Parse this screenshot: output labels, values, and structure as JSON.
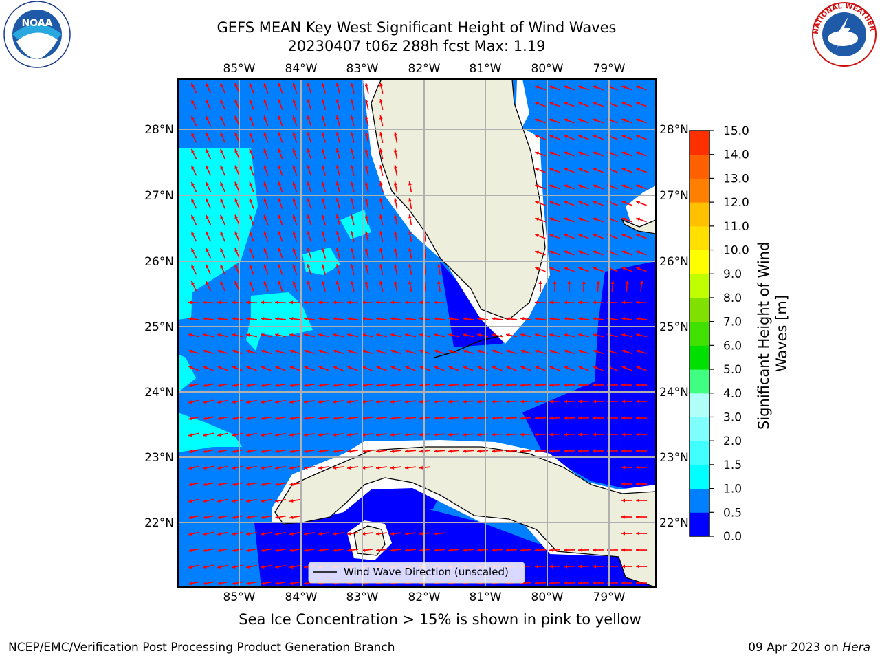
{
  "title": {
    "line1": "GEFS MEAN Key West Significant Height of Wind Waves",
    "line2": "20230407 t06z 288h fcst   Max: 1.19"
  },
  "map": {
    "lon_ticks": [
      "85°W",
      "84°W",
      "83°W",
      "82°W",
      "81°W",
      "80°W",
      "79°W"
    ],
    "lat_ticks": [
      "28°N",
      "27°N",
      "26°N",
      "25°N",
      "24°N",
      "23°N",
      "22°N"
    ],
    "legend_label": "Wind Wave Direction (unscaled)"
  },
  "colorbar": {
    "label": "Significant Height of Wind Waves [m]",
    "ticks": [
      "0.0",
      "0.5",
      "1.0",
      "1.5",
      "2.0",
      "3.0",
      "4.0",
      "5.0",
      "6.0",
      "7.0",
      "8.0",
      "9.0",
      "10.0",
      "11.0",
      "12.0",
      "13.0",
      "14.0",
      "15.0"
    ],
    "colors": [
      "#0000ff",
      "#0080ff",
      "#00ffff",
      "#40ffff",
      "#80ffff",
      "#b0fff8",
      "#40ff80",
      "#00e000",
      "#40e000",
      "#80e000",
      "#c0ff00",
      "#ffff00",
      "#ffe000",
      "#ffc000",
      "#ff8000",
      "#ff6000",
      "#ff3000",
      "#ff0000"
    ]
  },
  "logos": {
    "left": "NOAA",
    "right": "NATIONAL WEATHER SERVICE"
  },
  "sea_ice_note": "Sea Ice Concentration > 15% is shown in pink to yellow",
  "footer": {
    "left": "NCEP/EMC/Verification Post Processing Product Generation Branch",
    "date": "09 Apr 2023 on ",
    "host": "Hera"
  },
  "colors": {
    "ocean": "#0080ff",
    "low": "#0000ff",
    "mid": "#00ffff",
    "land": "#eeeedd",
    "arrow": "#ff0000"
  }
}
